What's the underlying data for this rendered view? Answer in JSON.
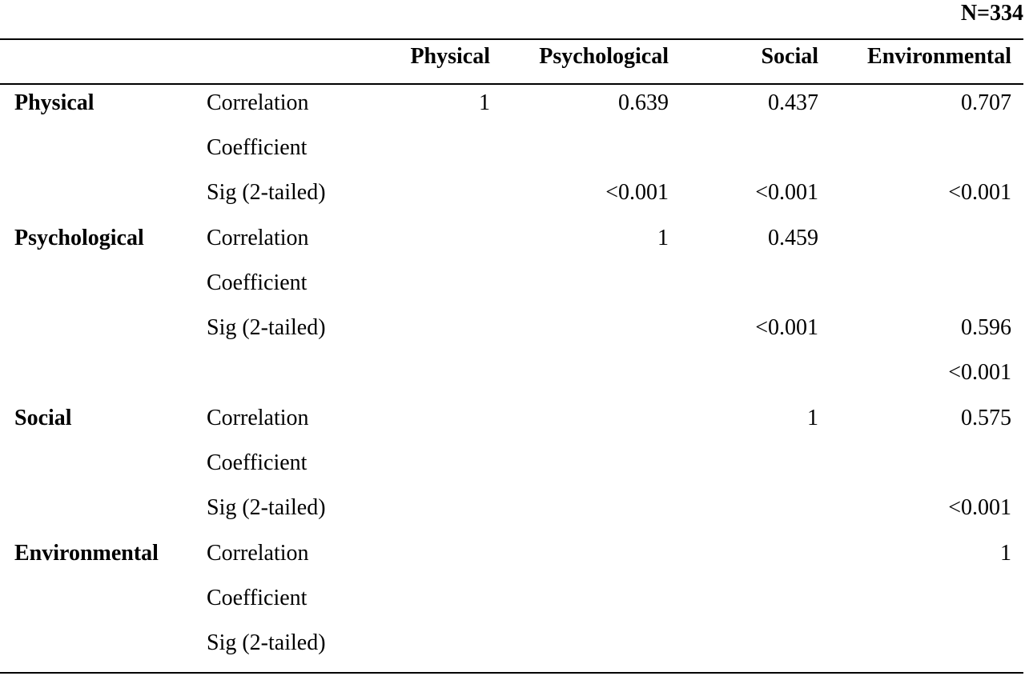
{
  "sample_size": "N=334",
  "headers": [
    "Physical",
    "Psychological",
    "Social",
    "Environmental"
  ],
  "rows": [
    {
      "label": "Physical",
      "stat1": "Correlation",
      "stat2": "Coefficient",
      "stat3": "Sig (2-tailed)",
      "corr": [
        "1",
        "0.639",
        "0.437",
        "0.707"
      ],
      "sig": [
        "",
        "<0.001",
        "<0.001",
        "<0.001"
      ]
    },
    {
      "label": "Psychological",
      "stat1": "Correlation",
      "stat2": "Coefficient",
      "stat3": "Sig (2-tailed)",
      "corr": [
        "",
        "1",
        "0.459",
        ""
      ],
      "sig": [
        "",
        "",
        "<0.001",
        "0.596"
      ],
      "extra": "<0.001"
    },
    {
      "label": "Social",
      "stat1": "Correlation",
      "stat2": "Coefficient",
      "stat3": "Sig (2-tailed)",
      "corr": [
        "",
        "",
        "1",
        "0.575"
      ],
      "sig": [
        "",
        "",
        "",
        "<0.001"
      ]
    },
    {
      "label": "Environmental",
      "stat1": "Correlation",
      "stat2": "Coefficient",
      "stat3": "Sig (2-tailed)",
      "corr": [
        "",
        "",
        "",
        "1"
      ],
      "sig": [
        "",
        "",
        "",
        ""
      ]
    }
  ]
}
